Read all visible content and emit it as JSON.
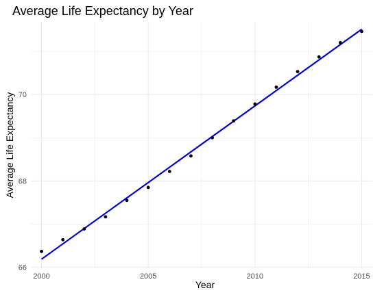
{
  "chart_data": {
    "type": "scatter",
    "title": "Average Life Expectancy by Year",
    "xlabel": "Year",
    "ylabel": "Average Life Expectancy",
    "xlim": [
      1999.5,
      2015.5
    ],
    "ylim": [
      65.98,
      71.68
    ],
    "x_ticks": [
      2000,
      2005,
      2010,
      2015
    ],
    "y_ticks": [
      66,
      68,
      70
    ],
    "grid": true,
    "points": {
      "x": [
        2000,
        2001,
        2002,
        2003,
        2004,
        2005,
        2006,
        2007,
        2008,
        2009,
        2010,
        2011,
        2012,
        2013,
        2014,
        2015
      ],
      "y": [
        66.37,
        66.64,
        66.89,
        67.17,
        67.55,
        67.85,
        68.22,
        68.58,
        69.0,
        69.39,
        69.78,
        70.17,
        70.53,
        70.87,
        71.2,
        71.46
      ]
    },
    "trend_line": {
      "x": [
        2000,
        2015
      ],
      "y": [
        66.19,
        71.51
      ]
    },
    "colors": {
      "points": "#000000",
      "trend_line": "#0000cd",
      "grid": "#ebebeb",
      "background": "#ffffff"
    }
  }
}
